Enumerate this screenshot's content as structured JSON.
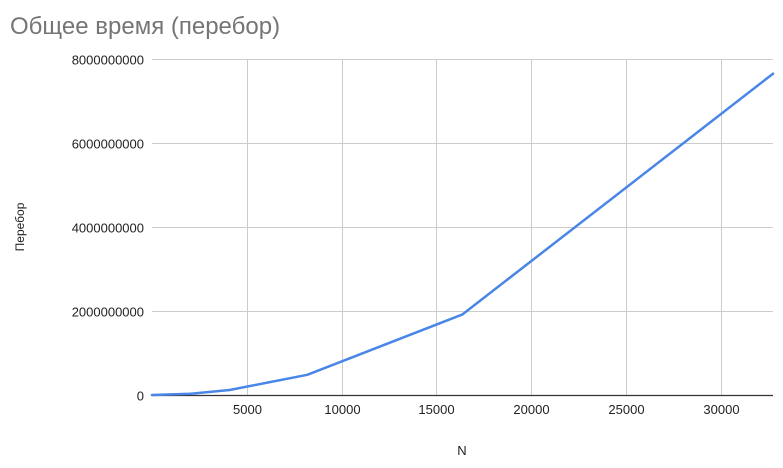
{
  "chart_data": {
    "type": "line",
    "title": "Общее время (перебор)",
    "xlabel": "N",
    "ylabel": "Перебор",
    "xlim": [
      0,
      32768
    ],
    "ylim": [
      0,
      8000000000
    ],
    "xticks": [
      5000,
      10000,
      15000,
      20000,
      25000,
      30000
    ],
    "yticks": [
      0,
      2000000000,
      4000000000,
      6000000000,
      8000000000
    ],
    "xtick_labels": [
      "5000",
      "10000",
      "15000",
      "20000",
      "25000",
      "30000"
    ],
    "ytick_labels": [
      "0",
      "2000000000",
      "4000000000",
      "6000000000",
      "8000000000"
    ],
    "grid": true,
    "series": [
      {
        "color": "#4a86e8",
        "points": [
          {
            "x": 0,
            "y": 0
          },
          {
            "x": 2048,
            "y": 30000000
          },
          {
            "x": 4096,
            "y": 120000000
          },
          {
            "x": 8192,
            "y": 480000000
          },
          {
            "x": 16384,
            "y": 1920000000
          },
          {
            "x": 32768,
            "y": 7650000000
          }
        ]
      }
    ]
  },
  "colors": {
    "title": "#757575",
    "grid": "#cccccc",
    "baseline": "#333333",
    "tick_label": "#222222",
    "axis_label": "#222222"
  }
}
